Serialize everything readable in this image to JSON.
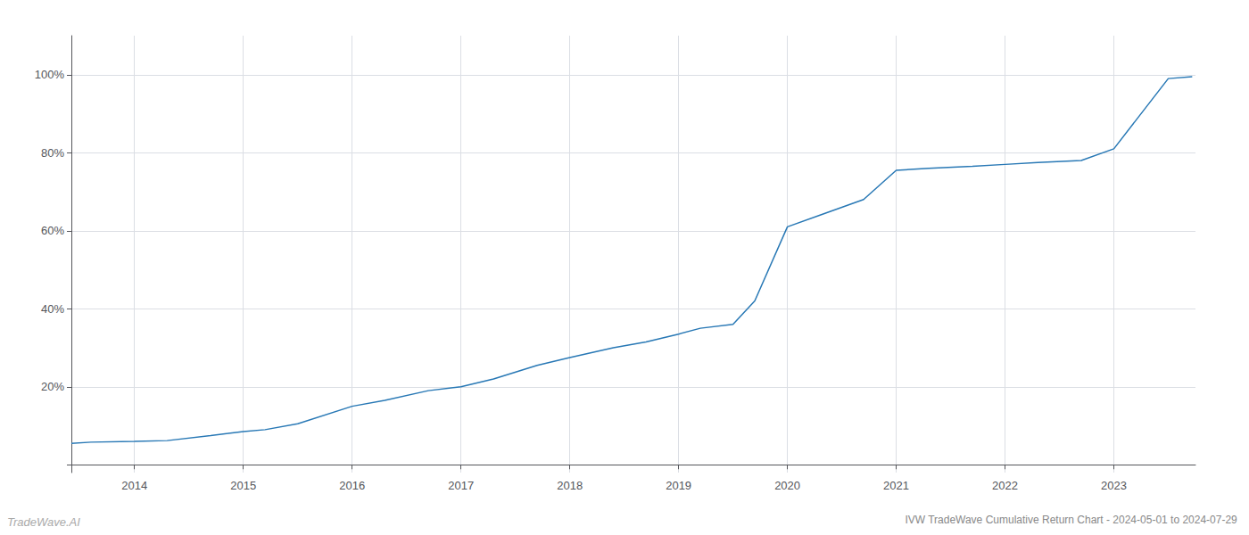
{
  "chart_data": {
    "type": "line",
    "title": "IVW TradeWave Cumulative Return Chart - 2024-05-01 to 2024-07-29",
    "annotations": [
      "TradeWave.AI"
    ],
    "color": "#2878b5",
    "grid": true,
    "x": [
      2013.42,
      2013.6,
      2014.0,
      2014.3,
      2014.7,
      2015.0,
      2015.2,
      2015.5,
      2016.0,
      2016.3,
      2016.7,
      2017.0,
      2017.3,
      2017.7,
      2018.0,
      2018.4,
      2018.7,
      2019.0,
      2019.2,
      2019.5,
      2019.7,
      2020.0,
      2020.3,
      2020.7,
      2021.0,
      2021.3,
      2021.7,
      2022.0,
      2022.3,
      2022.7,
      2023.0,
      2023.5,
      2023.72
    ],
    "values": [
      5.5,
      5.8,
      6.0,
      6.2,
      7.5,
      8.5,
      9.0,
      10.5,
      15.0,
      16.5,
      19.0,
      20.0,
      22.0,
      25.5,
      27.5,
      30.0,
      31.5,
      33.5,
      35.0,
      36.0,
      42.0,
      61.0,
      64.0,
      68.0,
      75.5,
      76.0,
      76.5,
      77.0,
      77.5,
      78.0,
      81.0,
      99.0,
      99.5
    ],
    "xlim": [
      2013.42,
      2023.75
    ],
    "xticks": [
      2014,
      2015,
      2016,
      2017,
      2018,
      2019,
      2020,
      2021,
      2022,
      2023
    ],
    "ylim": [
      -2,
      110
    ],
    "yticks": [
      {
        "value": 0,
        "label": ""
      },
      {
        "value": 20,
        "label": "20%"
      },
      {
        "value": 40,
        "label": "40%"
      },
      {
        "value": 60,
        "label": "60%"
      },
      {
        "value": 80,
        "label": "80%"
      },
      {
        "value": 100,
        "label": "100%"
      }
    ]
  }
}
